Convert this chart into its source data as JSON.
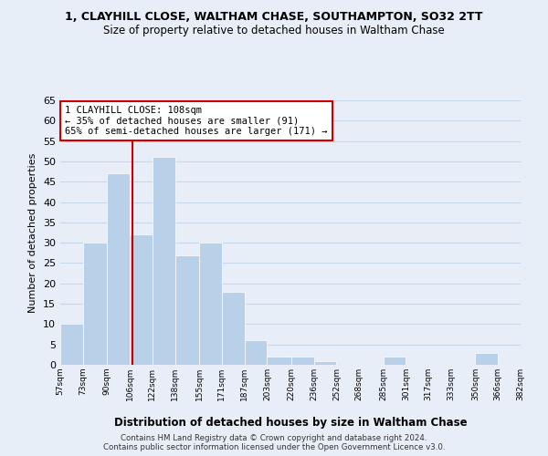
{
  "title": "1, CLAYHILL CLOSE, WALTHAM CHASE, SOUTHAMPTON, SO32 2TT",
  "subtitle": "Size of property relative to detached houses in Waltham Chase",
  "xlabel": "Distribution of detached houses by size in Waltham Chase",
  "ylabel": "Number of detached properties",
  "bar_color": "#b8d0e8",
  "grid_color": "#c8d8ec",
  "bin_edges": [
    57,
    73,
    90,
    106,
    122,
    138,
    155,
    171,
    187,
    203,
    220,
    236,
    252,
    268,
    285,
    301,
    317,
    333,
    350,
    366,
    382
  ],
  "bin_labels": [
    "57sqm",
    "73sqm",
    "90sqm",
    "106sqm",
    "122sqm",
    "138sqm",
    "155sqm",
    "171sqm",
    "187sqm",
    "203sqm",
    "220sqm",
    "236sqm",
    "252sqm",
    "268sqm",
    "285sqm",
    "301sqm",
    "317sqm",
    "333sqm",
    "350sqm",
    "366sqm",
    "382sqm"
  ],
  "counts": [
    10,
    30,
    47,
    32,
    51,
    27,
    30,
    18,
    6,
    2,
    2,
    1,
    0,
    0,
    2,
    0,
    0,
    0,
    3,
    0
  ],
  "ylim": [
    0,
    65
  ],
  "yticks": [
    0,
    5,
    10,
    15,
    20,
    25,
    30,
    35,
    40,
    45,
    50,
    55,
    60,
    65
  ],
  "property_line_x": 108,
  "property_line_color": "#cc0000",
  "annotation_text": "1 CLAYHILL CLOSE: 108sqm\n← 35% of detached houses are smaller (91)\n65% of semi-detached houses are larger (171) →",
  "annotation_box_color": "#ffffff",
  "annotation_box_edge": "#cc0000",
  "footer1": "Contains HM Land Registry data © Crown copyright and database right 2024.",
  "footer2": "Contains public sector information licensed under the Open Government Licence v3.0.",
  "bg_color": "#e8eef8"
}
